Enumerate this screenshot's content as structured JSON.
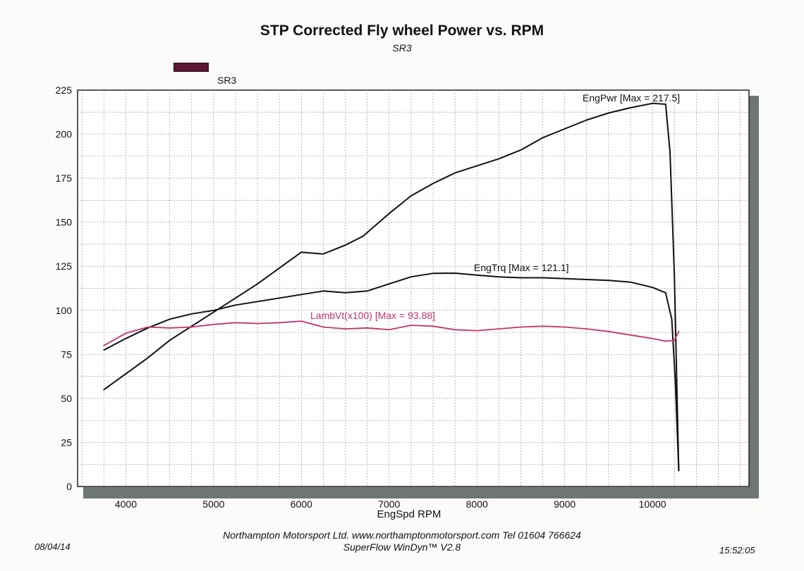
{
  "chart_data": {
    "type": "line",
    "title": "STP Corrected Fly wheel Power vs. RPM",
    "subtitle": "SR3",
    "legend": [
      {
        "label": "SR3",
        "color": "#5b1530"
      }
    ],
    "xlabel": "EngSpd  RPM",
    "ylabel": "",
    "xlim": [
      3450,
      11100
    ],
    "ylim": [
      0,
      225
    ],
    "xticks": [
      4000,
      5000,
      6000,
      7000,
      8000,
      9000,
      10000
    ],
    "yticks": [
      0,
      25,
      50,
      75,
      100,
      125,
      150,
      175,
      200,
      225
    ],
    "grid": true,
    "series": [
      {
        "name": "EngPwr",
        "annotation": "EngPwr [Max = 217.5]",
        "color": "#111111",
        "x": [
          3750,
          4000,
          4250,
          4500,
          4750,
          5000,
          5250,
          5500,
          5750,
          6000,
          6250,
          6500,
          6700,
          7000,
          7250,
          7500,
          7750,
          8000,
          8250,
          8500,
          8750,
          9000,
          9250,
          9500,
          9750,
          10000,
          10150,
          10200,
          10250,
          10300
        ],
        "y": [
          55,
          64,
          73,
          83,
          91,
          99,
          107,
          115,
          124,
          133,
          132,
          137,
          142,
          155,
          165,
          172,
          178,
          182,
          186,
          191,
          198,
          203,
          208,
          212,
          215,
          217.5,
          217,
          190,
          120,
          9
        ]
      },
      {
        "name": "EngTrq",
        "annotation": "EngTrq [Max = 121.1]",
        "color": "#111111",
        "x": [
          3750,
          4000,
          4250,
          4500,
          4750,
          5000,
          5250,
          5500,
          5750,
          6000,
          6250,
          6500,
          6750,
          7000,
          7250,
          7500,
          7750,
          8000,
          8250,
          8500,
          8750,
          9000,
          9250,
          9500,
          9750,
          10000,
          10150,
          10220,
          10260,
          10300
        ],
        "y": [
          77.5,
          84,
          90,
          95,
          98,
          100,
          103,
          105,
          107,
          109,
          111,
          110,
          111,
          115,
          119,
          121,
          121.1,
          120,
          119,
          118.5,
          118.5,
          118,
          117.5,
          117,
          116,
          113,
          110,
          95,
          60,
          9
        ]
      },
      {
        "name": "LambVt(x100)",
        "annotation": "LambVt(x100) [Max = 93.88]",
        "color": "#c2336e",
        "x": [
          3750,
          4000,
          4250,
          4500,
          4750,
          5000,
          5250,
          5500,
          5750,
          6000,
          6250,
          6500,
          6750,
          7000,
          7250,
          7500,
          7750,
          8000,
          8250,
          8500,
          8750,
          9000,
          9250,
          9500,
          9750,
          10000,
          10150,
          10250,
          10300
        ],
        "y": [
          80,
          87,
          90.5,
          90,
          90.5,
          92,
          93,
          92.5,
          93,
          93.88,
          90.5,
          89.5,
          90,
          89,
          91.5,
          91,
          89,
          88.5,
          89.5,
          90.5,
          91,
          90.5,
          89.5,
          88,
          86,
          84,
          82.5,
          83,
          88
        ]
      }
    ]
  },
  "page": {
    "x_title": "EngSpd  RPM",
    "footer_line1": "Northampton Motorsport Ltd. www.northamptonmotorsport.com Tel 01604 766624",
    "footer_line2": "SuperFlow WinDyn™ V2.8",
    "date": "08/04/14",
    "time": "15:52:05"
  }
}
